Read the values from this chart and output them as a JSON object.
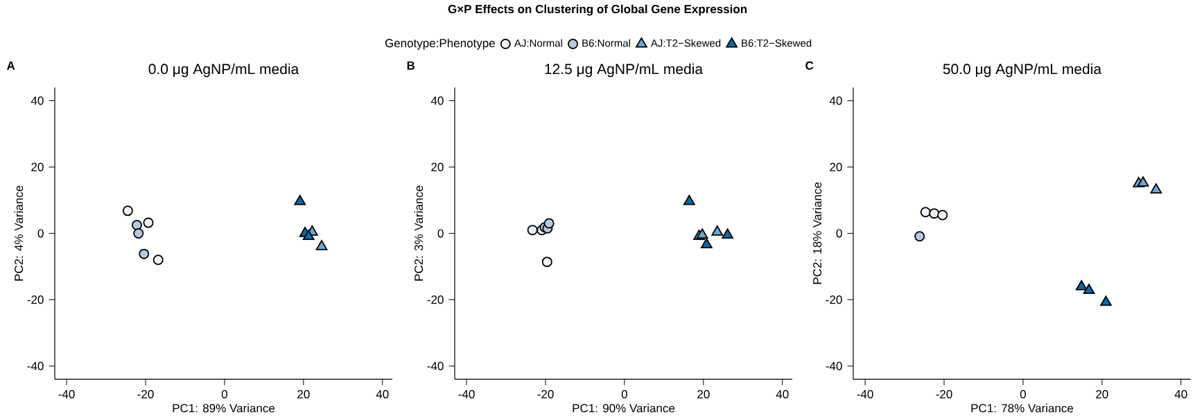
{
  "chart_data": [
    {
      "type": "scatter",
      "title": "0.0 μg AgNP/mL media",
      "xlabel": "PC1: 89% Variance",
      "ylabel": "PC2: 4% Variance",
      "xlim": [
        -43,
        42.5
      ],
      "ylim": [
        -44,
        44
      ],
      "xticks": [
        -40,
        -20,
        0,
        20,
        40
      ],
      "yticks": [
        -40,
        -20,
        0,
        20,
        40
      ],
      "legend": "top",
      "legend_title": "Genotype:Phenotype",
      "annotations": [
        "A",
        "**G×P Effects on Clustering of Global Gene Expression**"
      ],
      "series": [
        {
          "name": "AJ:Normal",
          "color": "#f0f0f8",
          "marker": "circle",
          "x": [
            -24.5,
            -19.3,
            -16.8
          ],
          "values": [
            6.8,
            3.2,
            -8.0
          ]
        },
        {
          "name": "B6:Normal",
          "color": "#b8c8e0",
          "marker": "circle",
          "x": [
            -22.2,
            -21.8,
            -20.4
          ],
          "values": [
            2.5,
            0.0,
            -6.2
          ]
        },
        {
          "name": "AJ:T2−Skewed",
          "color": "#6ca6d2",
          "marker": "triangle",
          "x": [
            22.2,
            24.6
          ],
          "values": [
            0.4,
            -4.0
          ]
        },
        {
          "name": "B6:T2−Skewed",
          "color": "#0b6aa8",
          "marker": "triangle",
          "x": [
            19.1,
            20.4,
            21.3
          ],
          "values": [
            9.6,
            0.0,
            -0.9
          ]
        }
      ]
    },
    {
      "type": "scatter",
      "title": "12.5 μg AgNP/mL media",
      "xlabel": "PC1: 90% Variance",
      "ylabel": "PC2: 3% Variance",
      "xlim": [
        -43,
        42.5
      ],
      "ylim": [
        -44,
        44
      ],
      "xticks": [
        -40,
        -20,
        0,
        20,
        40
      ],
      "yticks": [
        -40,
        -20,
        0,
        20,
        40
      ],
      "annotations": [
        "B"
      ],
      "series": [
        {
          "color": "#f0f0f8",
          "marker": "circle",
          "x": [
            -23.3,
            -20.9,
            -19.6
          ],
          "values": [
            1.0,
            1.0,
            -8.6
          ]
        },
        {
          "color": "#b8c8e0",
          "marker": "circle",
          "x": [
            -20.2,
            -19.5,
            -19.1
          ],
          "values": [
            1.8,
            1.5,
            3.0
          ]
        },
        {
          "color": "#6ca6d2",
          "marker": "triangle",
          "x": [
            18.9,
            19.7,
            23.5
          ],
          "values": [
            -0.9,
            -0.5,
            0.4
          ]
        },
        {
          "color": "#0b6aa8",
          "marker": "triangle",
          "x": [
            16.4,
            20.8,
            26.1
          ],
          "values": [
            9.6,
            -3.4,
            -0.5
          ]
        }
      ]
    },
    {
      "type": "scatter",
      "title": "50.0 μg AgNP/mL media",
      "xlabel": "PC1: 78% Variance",
      "ylabel": "PC2: 18% Variance",
      "xlim": [
        -43,
        42.5
      ],
      "ylim": [
        -44,
        44
      ],
      "xticks": [
        -40,
        -20,
        0,
        20,
        40
      ],
      "yticks": [
        -40,
        -20,
        0,
        20,
        40
      ],
      "annotations": [
        "C"
      ],
      "series": [
        {
          "color": "#f0f0f8",
          "marker": "circle",
          "x": [
            -24.7,
            -22.5,
            -20.4
          ],
          "values": [
            6.4,
            6.0,
            5.5
          ]
        },
        {
          "color": "#b8c8e0",
          "marker": "circle",
          "x": [
            -26.2
          ],
          "values": [
            -0.9
          ]
        },
        {
          "color": "#6ca6d2",
          "marker": "triangle",
          "x": [
            29.3,
            30.4,
            33.7
          ],
          "values": [
            15.0,
            15.2,
            13.1
          ]
        },
        {
          "color": "#0b6aa8",
          "marker": "triangle",
          "x": [
            14.8,
            16.7,
            21.0
          ],
          "values": [
            -16.1,
            -17.2,
            -20.8
          ]
        }
      ]
    }
  ]
}
